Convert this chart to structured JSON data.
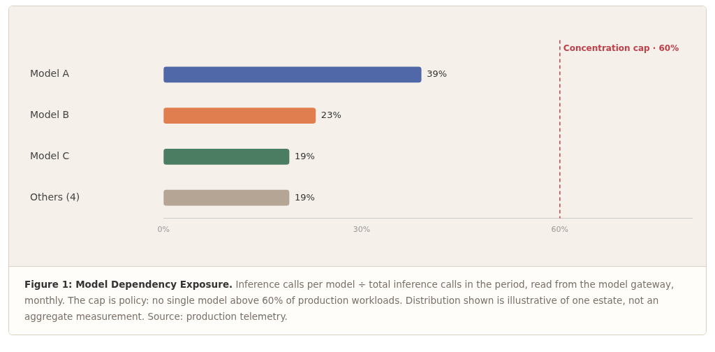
{
  "chart_data": {
    "type": "bar",
    "orientation": "horizontal",
    "title": "Figure 1: Model Dependency Exposure.",
    "annotations": [
      "Inference calls per model ÷ total inference calls in the period, read from the model gateway, monthly. The cap is policy: no single model above 60% of production workloads. Distribution shown is illustrative of one estate, not an aggregate measurement. Source: production telemetry."
    ],
    "categories": [
      "Model A",
      "Model B",
      "Model C",
      "Others (4)"
    ],
    "values": [
      39,
      23,
      19,
      19
    ],
    "colors": [
      "#5068a8",
      "#e07e50",
      "#4b7d62",
      "#b5a595"
    ],
    "value_labels": [
      "39%",
      "23%",
      "19%",
      "19%"
    ],
    "xlim": [
      0,
      80
    ],
    "xticks": [
      {
        "value": 0,
        "label": "0%"
      },
      {
        "value": 30,
        "label": "30%"
      },
      {
        "value": 60,
        "label": "60%"
      }
    ],
    "ref_lines": [
      {
        "axis": "x",
        "value": 60,
        "label": "Concentration cap · 60%",
        "color": "#c0404a",
        "line_style": "dashed"
      }
    ],
    "grid": false,
    "legend": false
  }
}
